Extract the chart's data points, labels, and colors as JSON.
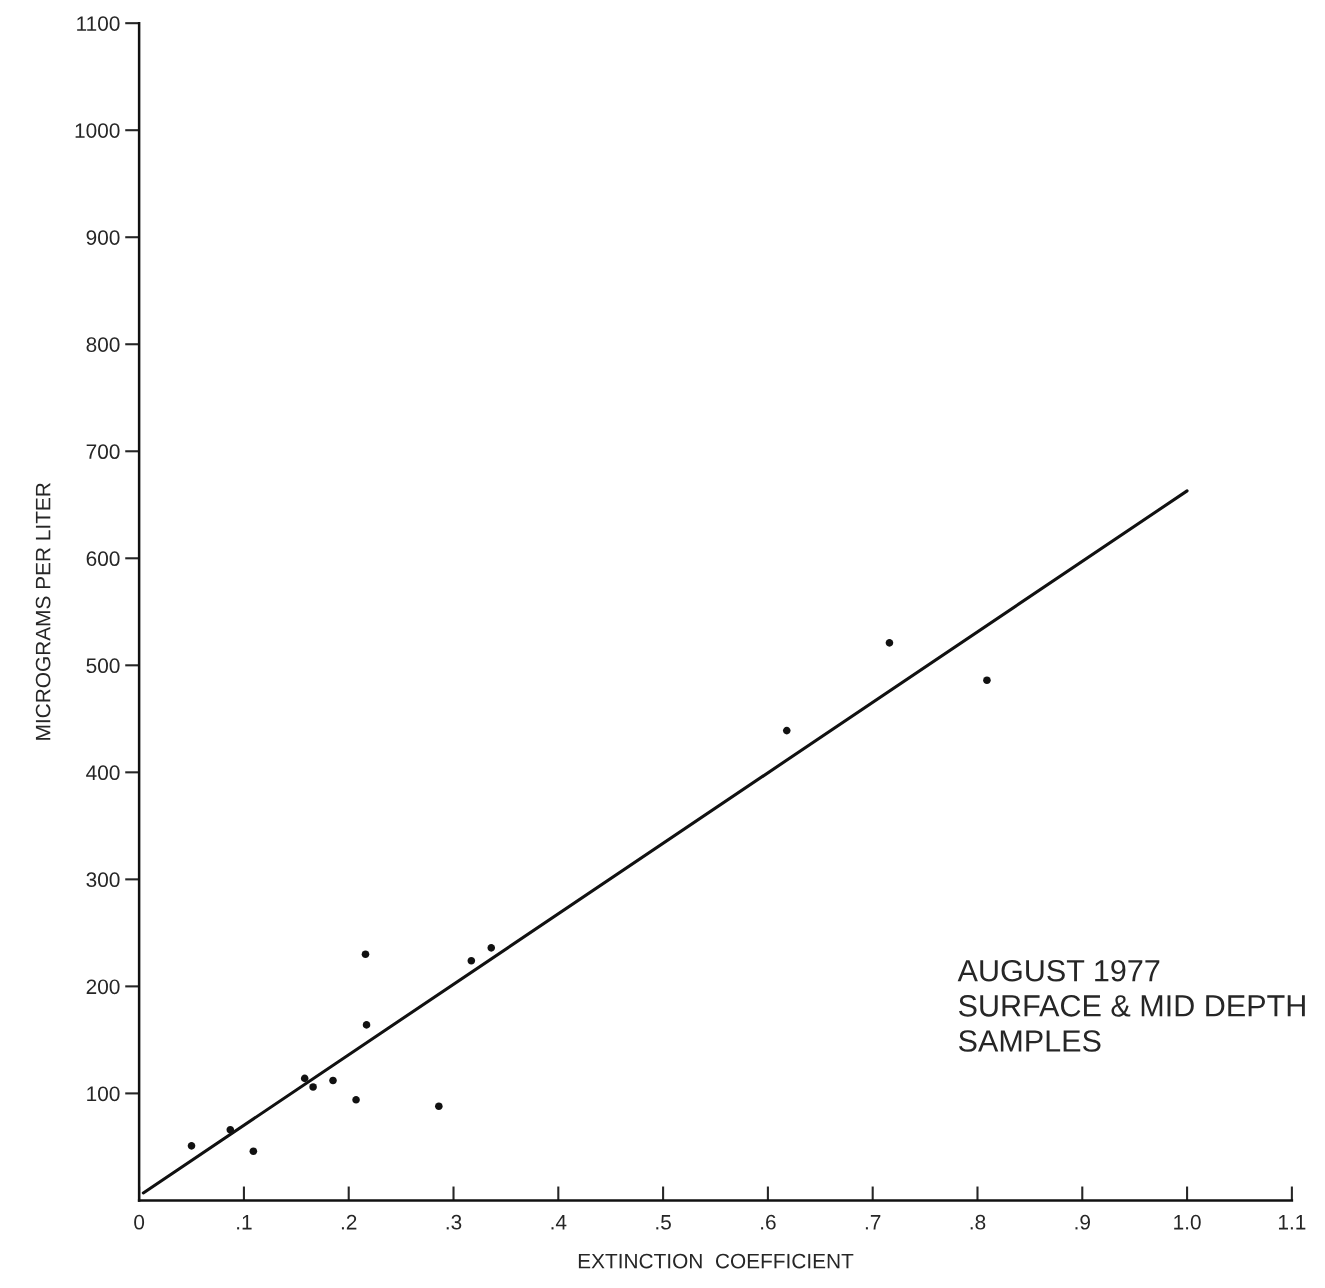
{
  "chart_data": {
    "type": "scatter",
    "xlabel": "EXTINCTION  COEFFICIENT",
    "ylabel": "MICROGRAMS PER LITER",
    "annotations": [
      "AUGUST 1977\nSURFACE & MID DEPTH\nSAMPLES"
    ],
    "series": [
      {
        "color": "#111111",
        "marker": "circle",
        "x": [
          0.05,
          0.087,
          0.109,
          0.158,
          0.166,
          0.185,
          0.207,
          0.216,
          0.217,
          0.286,
          0.317,
          0.336,
          0.618,
          0.716,
          0.809
        ],
        "values": [
          51,
          66,
          46,
          114,
          106,
          112,
          94,
          230,
          164,
          88,
          224,
          236,
          439,
          521,
          486
        ]
      },
      {
        "type": "line",
        "color": "#111111",
        "x": [
          0.004,
          1.0
        ],
        "values": [
          7,
          663
        ]
      }
    ],
    "xlim": [
      0,
      1.1
    ],
    "ylim": [
      0,
      1100
    ],
    "xticks": [
      0,
      {
        "value": 0.1,
        "label": ".1"
      },
      {
        "value": 0.2,
        "label": ".2"
      },
      {
        "value": 0.3,
        "label": ".3"
      },
      {
        "value": 0.4,
        "label": ".4"
      },
      {
        "value": 0.5,
        "label": ".5"
      },
      {
        "value": 0.6,
        "label": ".6"
      },
      {
        "value": 0.7,
        "label": ".7"
      },
      {
        "value": 0.8,
        "label": ".8"
      },
      {
        "value": 0.9,
        "label": ".9"
      },
      {
        "value": 1.0,
        "label": "1.0"
      },
      {
        "value": 1.1,
        "label": "1.1"
      }
    ],
    "yticks": [
      100,
      200,
      300,
      400,
      500,
      600,
      700,
      800,
      900,
      1000,
      1100
    ],
    "grid": false,
    "legend": false
  }
}
